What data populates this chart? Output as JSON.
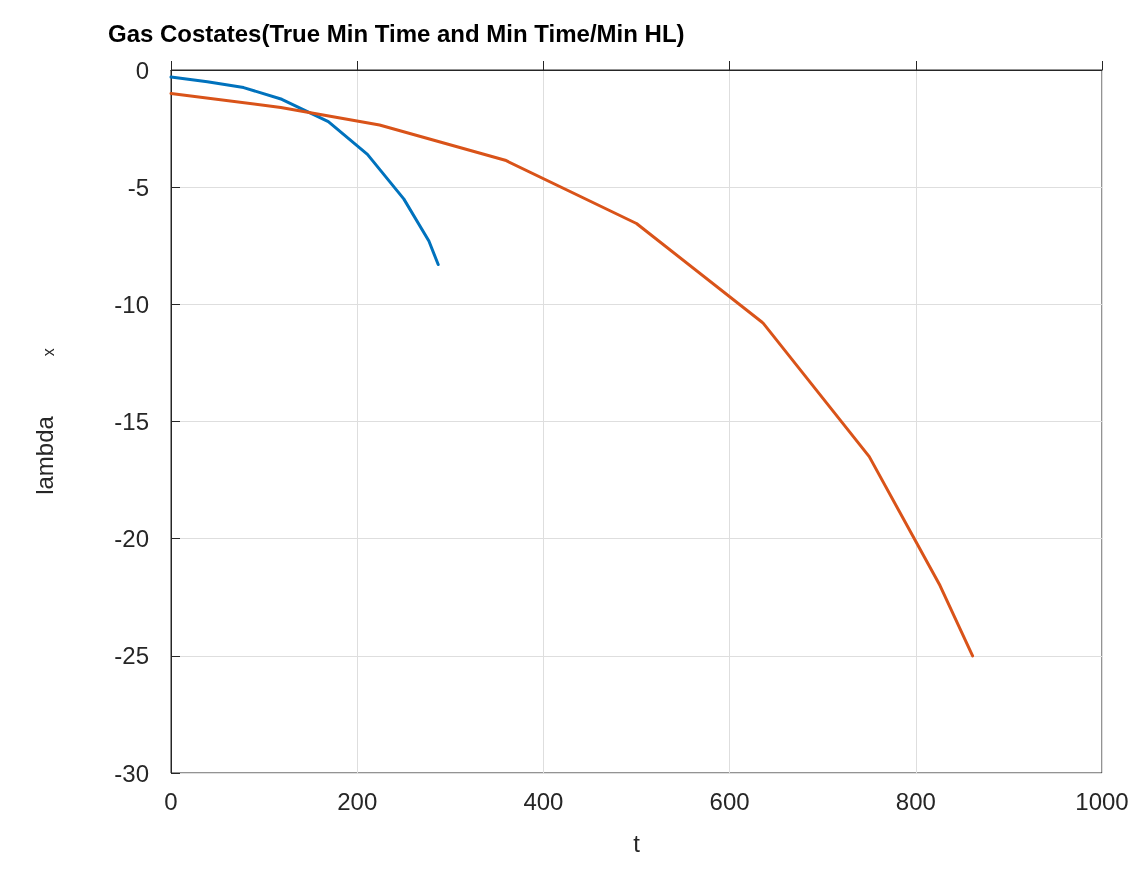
{
  "chart_data": {
    "type": "line",
    "title": "Gas Costates(True Min Time and Min Time/Min HL)",
    "xlabel": "t",
    "ylabel": "lambda$_{x}$",
    "series": [
      {
        "color": "#0072bd",
        "x": [
          0,
          39,
          78,
          119,
          169,
          211,
          250,
          277,
          287
        ],
        "values": [
          -0.3,
          -0.5,
          -0.75,
          -1.25,
          -2.2,
          -3.6,
          -5.5,
          -7.3,
          -8.3
        ]
      },
      {
        "color": "#d95319",
        "x": [
          0,
          118,
          224,
          359,
          500,
          636,
          750,
          826,
          861
        ],
        "values": [
          -1.0,
          -1.6,
          -2.35,
          -3.85,
          -6.55,
          -10.8,
          -16.5,
          -22.0,
          -25.0
        ]
      }
    ],
    "xlim": [
      0,
      1000
    ],
    "xticks": [
      0,
      200,
      400,
      600,
      800,
      1000
    ],
    "ylim": [
      -30,
      0
    ],
    "yticks": [
      -30,
      -25,
      -20,
      -15,
      -10,
      -5,
      0
    ],
    "grid": true,
    "line_style": "solid",
    "marker": "none"
  }
}
